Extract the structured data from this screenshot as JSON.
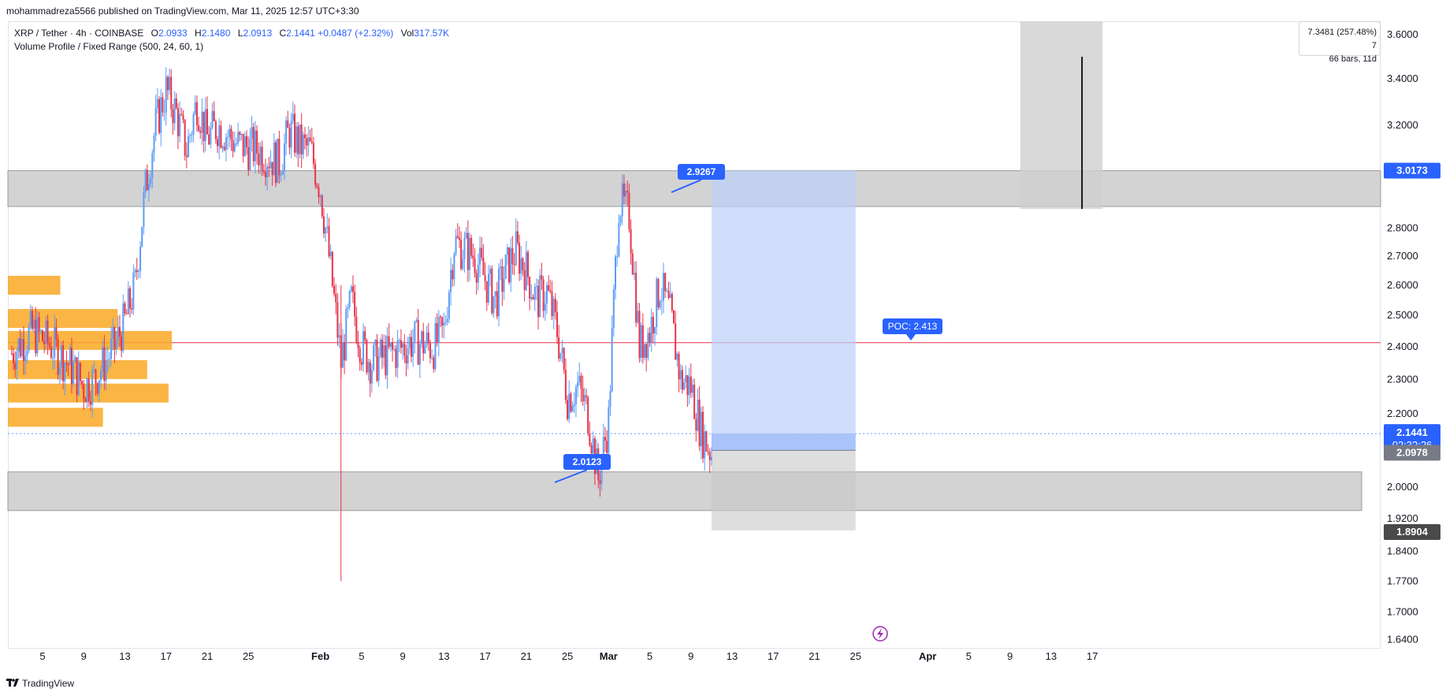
{
  "header": {
    "publish_text": "mohammadreza5566 published on TradingView.com, Mar 11, 2025 12:57 UTC+3:30"
  },
  "legend": {
    "symbol": "XRP / Tether · 4h · COINBASE",
    "o_key": "O",
    "o_val": "2.0933",
    "h_key": "H",
    "h_val": "2.1480",
    "l_key": "L",
    "l_val": "2.0913",
    "c_key": "C",
    "c_val": "2.1441",
    "change": "+0.0487 (+2.32%)",
    "vol_key": "Vol",
    "vol_val": "317.57K",
    "indicator": "Volume Profile / Fixed Range (500, 24, 60, 1)"
  },
  "measure": {
    "line1": "7.3481 (257.48%) 7",
    "line2": "66 bars, 11d"
  },
  "annotations": {
    "upper_callout": "2.9267",
    "lower_callout": "2.0123",
    "poc_callout": "POC: 2.413"
  },
  "price_labels": {
    "zone_top": "3.0173",
    "last_price": "2.1441",
    "countdown": "02:32:26",
    "target": "2.0978",
    "stop": "1.8904"
  },
  "colors": {
    "up": "#5b9cf6",
    "down": "#e8334a",
    "zone": "#c4c4c4",
    "volume_profile": "#f9a825",
    "position_target": "#bcd0fb",
    "poc_line": "#e8334a",
    "label_blue": "#2962ff",
    "label_gray": "#787b86",
    "label_dark": "#4a4a4a"
  },
  "footer": {
    "brand": "TradingView",
    "logo_icon": "tradingview-logo-icon"
  },
  "chart_data": {
    "type": "candlestick",
    "title": "XRP / Tether · 4h · COINBASE",
    "ylim": [
      1.64,
      3.6
    ],
    "y_scale": "log",
    "y_ticks": [
      "3.6000",
      "3.4000",
      "3.2000",
      "2.8000",
      "2.7000",
      "2.6000",
      "2.5000",
      "2.4000",
      "2.3000",
      "2.2000",
      "2.0000",
      "1.9200",
      "1.8400",
      "1.7700",
      "1.7000",
      "1.6400"
    ],
    "x_ticks": [
      "5",
      "9",
      "13",
      "17",
      "21",
      "25",
      "Feb",
      "5",
      "9",
      "13",
      "17",
      "21",
      "25",
      "Mar",
      "5",
      "9",
      "13",
      "17",
      "21",
      "25",
      "Apr",
      "5",
      "9",
      "13",
      "17"
    ],
    "price_path": [
      {
        "date": "2025-01-02",
        "price": 2.38
      },
      {
        "date": "2025-01-04",
        "price": 2.45
      },
      {
        "date": "2025-01-06",
        "price": 2.4
      },
      {
        "date": "2025-01-08",
        "price": 2.33
      },
      {
        "date": "2025-01-09",
        "price": 2.28
      },
      {
        "date": "2025-01-10",
        "price": 2.3
      },
      {
        "date": "2025-01-11",
        "price": 2.35
      },
      {
        "date": "2025-01-12",
        "price": 2.4
      },
      {
        "date": "2025-01-13",
        "price": 2.48
      },
      {
        "date": "2025-01-14",
        "price": 2.6
      },
      {
        "date": "2025-01-15",
        "price": 2.95
      },
      {
        "date": "2025-01-16",
        "price": 3.2
      },
      {
        "date": "2025-01-17",
        "price": 3.35
      },
      {
        "date": "2025-01-18",
        "price": 3.25
      },
      {
        "date": "2025-01-19",
        "price": 3.1
      },
      {
        "date": "2025-01-20",
        "price": 3.3
      },
      {
        "date": "2025-01-21",
        "price": 3.15
      },
      {
        "date": "2025-01-22",
        "price": 3.2
      },
      {
        "date": "2025-01-24",
        "price": 3.12
      },
      {
        "date": "2025-01-26",
        "price": 3.1
      },
      {
        "date": "2025-01-28",
        "price": 3.05
      },
      {
        "date": "2025-01-29",
        "price": 3.18
      },
      {
        "date": "2025-01-30",
        "price": 3.12
      },
      {
        "date": "2025-01-31",
        "price": 3.1
      },
      {
        "date": "2025-02-01",
        "price": 2.95
      },
      {
        "date": "2025-02-02",
        "price": 2.65
      },
      {
        "date": "2025-02-03",
        "price": 2.35
      },
      {
        "date": "2025-02-04",
        "price": 2.55
      },
      {
        "date": "2025-02-05",
        "price": 2.4
      },
      {
        "date": "2025-02-06",
        "price": 2.35
      },
      {
        "date": "2025-02-08",
        "price": 2.38
      },
      {
        "date": "2025-02-10",
        "price": 2.42
      },
      {
        "date": "2025-02-12",
        "price": 2.4
      },
      {
        "date": "2025-02-13",
        "price": 2.45
      },
      {
        "date": "2025-02-14",
        "price": 2.75
      },
      {
        "date": "2025-02-16",
        "price": 2.7
      },
      {
        "date": "2025-02-17",
        "price": 2.62
      },
      {
        "date": "2025-02-18",
        "price": 2.55
      },
      {
        "date": "2025-02-19",
        "price": 2.65
      },
      {
        "date": "2025-02-20",
        "price": 2.72
      },
      {
        "date": "2025-02-21",
        "price": 2.65
      },
      {
        "date": "2025-02-22",
        "price": 2.55
      },
      {
        "date": "2025-02-23",
        "price": 2.58
      },
      {
        "date": "2025-02-24",
        "price": 2.45
      },
      {
        "date": "2025-02-25",
        "price": 2.25
      },
      {
        "date": "2025-02-26",
        "price": 2.28
      },
      {
        "date": "2025-02-27",
        "price": 2.2
      },
      {
        "date": "2025-02-28",
        "price": 2.02
      },
      {
        "date": "2025-03-01",
        "price": 2.18
      },
      {
        "date": "2025-03-02",
        "price": 2.9
      },
      {
        "date": "2025-03-03",
        "price": 2.85
      },
      {
        "date": "2025-03-04",
        "price": 2.4
      },
      {
        "date": "2025-03-05",
        "price": 2.45
      },
      {
        "date": "2025-03-06",
        "price": 2.6
      },
      {
        "date": "2025-03-07",
        "price": 2.5
      },
      {
        "date": "2025-03-08",
        "price": 2.3
      },
      {
        "date": "2025-03-09",
        "price": 2.28
      },
      {
        "date": "2025-03-10",
        "price": 2.15
      },
      {
        "date": "2025-03-11",
        "price": 2.09
      },
      {
        "date": "2025-03-11",
        "price": 2.1441
      }
    ],
    "wick_extremes": {
      "low": 1.77,
      "low_date": "2025-02-03",
      "high": 3.4,
      "high_date": "2025-01-17"
    },
    "zones": [
      {
        "name": "upper_zone",
        "from": 2.88,
        "to": 3.0173
      },
      {
        "name": "lower_zone",
        "from": 1.94,
        "to": 2.04
      }
    ],
    "poc": 2.413,
    "long_position": {
      "entry": 2.0978,
      "target": 3.0173,
      "stop": 1.8904,
      "start": "2025-03-11",
      "end": "2025-03-25"
    },
    "volume_profile_levels": [
      2.6,
      2.49,
      2.42,
      2.33,
      2.26,
      2.19
    ],
    "volume_profile_relative": [
      0.32,
      0.67,
      1.0,
      0.85,
      0.98,
      0.58
    ],
    "measure": {
      "start": "2025-04-10",
      "end": "2025-04-18",
      "from": 2.88,
      "to": 3.6
    }
  }
}
